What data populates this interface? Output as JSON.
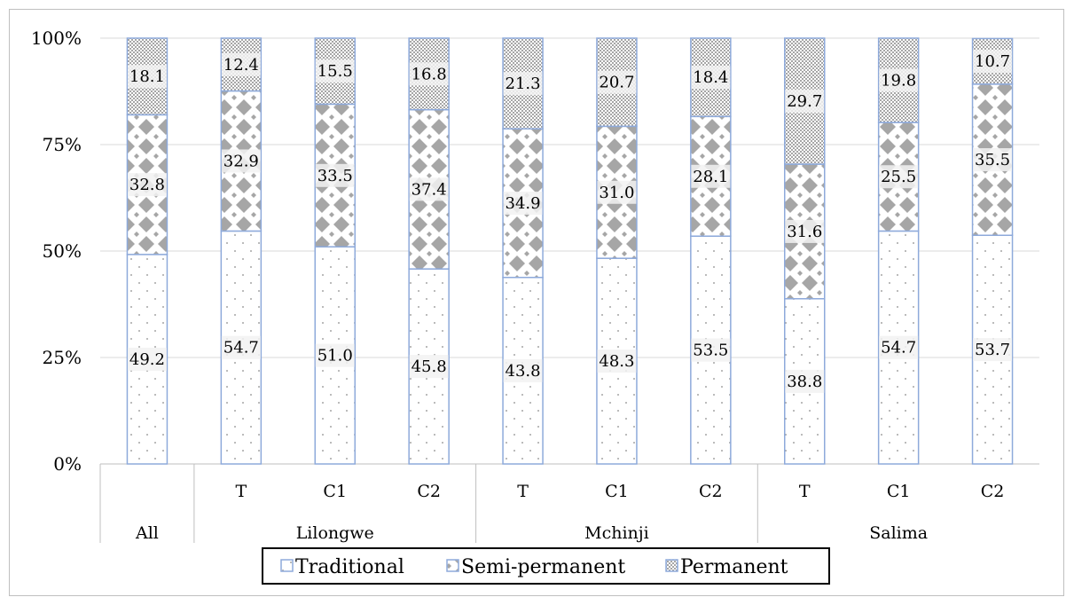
{
  "chart_data": {
    "type": "bar",
    "stacked": "percent",
    "groups": [
      {
        "label": "All",
        "categories": [
          ""
        ]
      },
      {
        "label": "Lilongwe",
        "categories": [
          "T",
          "C1",
          "C2"
        ]
      },
      {
        "label": "Mchinji",
        "categories": [
          "T",
          "C1",
          "C2"
        ]
      },
      {
        "label": "Salima",
        "categories": [
          "T",
          "C1",
          "C2"
        ]
      }
    ],
    "series": [
      {
        "name": "Traditional",
        "values": [
          49.2,
          54.7,
          51.0,
          45.8,
          43.8,
          48.3,
          53.5,
          38.8,
          54.7,
          53.7
        ]
      },
      {
        "name": "Semi-permanent",
        "values": [
          32.8,
          32.9,
          33.5,
          37.4,
          34.9,
          31.0,
          28.1,
          31.6,
          25.5,
          35.5
        ]
      },
      {
        "name": "Permanent",
        "values": [
          18.1,
          12.4,
          15.5,
          16.8,
          21.3,
          20.7,
          18.4,
          29.7,
          19.8,
          10.7
        ]
      }
    ],
    "data_labels": [
      [
        "49.2",
        "54.7",
        "51.0",
        "45.8",
        "43.8",
        "48.3",
        "53.5",
        "38.8",
        "54.7",
        "53.7"
      ],
      [
        "32.8",
        "32.9",
        "33.5",
        "37.4",
        "34.9",
        "31.0",
        "28.1",
        "31.6",
        "25.5",
        "35.5"
      ],
      [
        "18.1",
        "12.4",
        "15.5",
        "16.8",
        "21.3",
        "20.7",
        "18.4",
        "29.7",
        "19.8",
        "10.7"
      ]
    ],
    "y_ticks": [
      "0%",
      "25%",
      "50%",
      "75%",
      "100%"
    ],
    "ylim": [
      0,
      100
    ],
    "grid": true,
    "legend_position": "bottom",
    "colors": {
      "bar_border": "#8eaadb",
      "gridline": "#d9d9d9",
      "axis": "#bfbfbf",
      "pattern": "#a6a6a6",
      "text": "#000000"
    }
  }
}
